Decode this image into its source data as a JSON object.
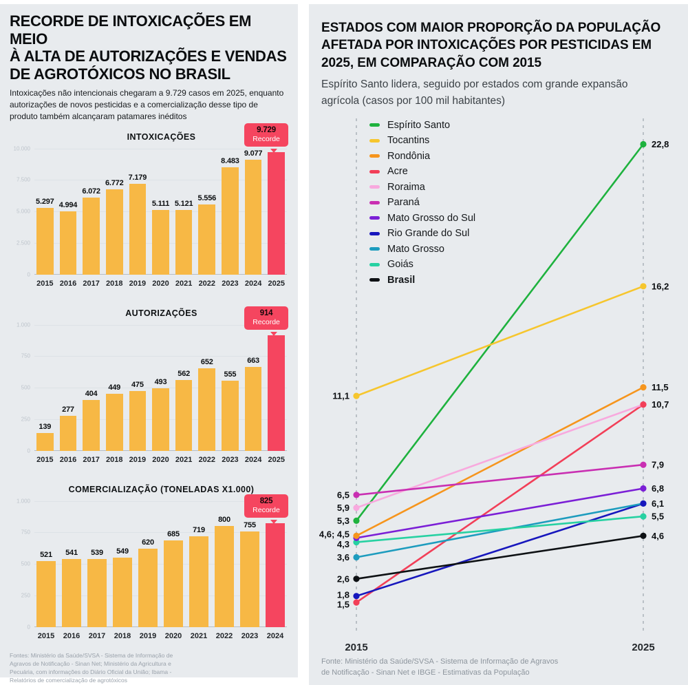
{
  "colors": {
    "panel_bg": "#e8ebee",
    "bar": "#f7b845",
    "record": "#f5455f",
    "grid": "#dde2e6",
    "dashed": "#a0a8b0"
  },
  "left_panel": {
    "title": "RECORDE DE INTOXICAÇÕES EM MEIO\nÀ ALTA DE AUTORIZAÇÕES E VENDAS\nDE AGROTÓXICOS NO BRASIL",
    "subtitle": "Intoxicações não intencionais chegaram a 9.729 casos em 2025, enquanto autorizações de novos pesticidas e a comercialização desse tipo de produto também alcançaram patamares inéditos",
    "source": "Fontes: Ministério da Saúde/SVSA - Sistema de Informação de\nAgravos de Notificação - Sinan Net; Ministério da Agricultura e\nPecuária, com informações do Diário Oficial da União; Ibama -\nRelatórios de comercialização de agrotóxicos"
  },
  "right_panel": {
    "title": "ESTADOS COM MAIOR PROPORÇÃO DA POPULAÇÃO\nAFETADA POR INTOXICAÇÕES POR PESTICIDAS EM\n2025, EM COMPARAÇÃO COM 2015",
    "subtitle": "Espírito Santo lidera, seguido por estados com grande expansão\nagrícola (casos por 100 mil habitantes)",
    "source": "Fonte: Ministério da Saúde/SVSA - Sistema de Informação de Agravos\nde Notificação - Sinan Net e IBGE - Estimativas da População"
  },
  "chart_data": [
    {
      "type": "bar",
      "title": "INTOXICAÇÕES",
      "categories": [
        "2015",
        "2016",
        "2017",
        "2018",
        "2019",
        "2020",
        "2021",
        "2022",
        "2023",
        "2024",
        "2025"
      ],
      "values": [
        5297,
        4994,
        6072,
        6772,
        7179,
        5111,
        5121,
        5556,
        8483,
        9077,
        9729
      ],
      "value_labels": [
        "5.297",
        "4.994",
        "6.072",
        "6.772",
        "7.179",
        "5.111",
        "5.121",
        "5.556",
        "8.483",
        "9.077",
        "9.729"
      ],
      "ylim": [
        0,
        10000
      ],
      "yticks": [
        "10.000",
        "7.500",
        "5.000",
        "2.500",
        "0"
      ],
      "record": {
        "index": 10,
        "value_label": "9.729",
        "badge_label": "Recorde"
      }
    },
    {
      "type": "bar",
      "title": "AUTORIZAÇÕES",
      "categories": [
        "2015",
        "2016",
        "2017",
        "2018",
        "2019",
        "2020",
        "2021",
        "2022",
        "2023",
        "2024",
        "2025"
      ],
      "values": [
        139,
        277,
        404,
        449,
        475,
        493,
        562,
        652,
        555,
        663,
        914
      ],
      "value_labels": [
        "139",
        "277",
        "404",
        "449",
        "475",
        "493",
        "562",
        "652",
        "555",
        "663",
        "914"
      ],
      "ylim": [
        0,
        1000
      ],
      "yticks": [
        "1.000",
        "750",
        "500",
        "250",
        "0"
      ],
      "record": {
        "index": 10,
        "value_label": "914",
        "badge_label": "Recorde"
      }
    },
    {
      "type": "bar",
      "title": "COMERCIALIZAÇÃO (TONELADAS X1.000)",
      "categories": [
        "2015",
        "2016",
        "2017",
        "2018",
        "2019",
        "2020",
        "2021",
        "2022",
        "2023",
        "2024"
      ],
      "values": [
        521,
        541,
        539,
        549,
        620,
        685,
        719,
        800,
        755,
        825
      ],
      "value_labels": [
        "521",
        "541",
        "539",
        "549",
        "620",
        "685",
        "719",
        "800",
        "755",
        "825"
      ],
      "ylim": [
        0,
        1000
      ],
      "yticks": [
        "1.000",
        "750",
        "500",
        "250",
        "0"
      ],
      "record": {
        "index": 9,
        "value_label": "825",
        "badge_label": "Recorde"
      }
    },
    {
      "type": "line",
      "subtype": "slope",
      "x": [
        "2015",
        "2025"
      ],
      "ylim": [
        0,
        24
      ],
      "series": [
        {
          "name": "Espírito Santo",
          "color": "#1eb23e",
          "values": [
            5.3,
            22.8
          ]
        },
        {
          "name": "Tocantins",
          "color": "#f6c62e",
          "values": [
            11.1,
            16.2
          ]
        },
        {
          "name": "Rondônia",
          "color": "#f6951d",
          "values": [
            4.6,
            11.5
          ]
        },
        {
          "name": "Acre",
          "color": "#f23f58",
          "values": [
            1.5,
            10.7
          ]
        },
        {
          "name": "Roraima",
          "color": "#f8a9de",
          "values": [
            5.9,
            10.7
          ]
        },
        {
          "name": "Paraná",
          "color": "#c92fb2",
          "values": [
            6.5,
            7.9
          ]
        },
        {
          "name": "Mato Grosso do Sul",
          "color": "#7b1fd6",
          "values": [
            4.5,
            6.8
          ]
        },
        {
          "name": "Rio Grande do Sul",
          "color": "#1717bd",
          "values": [
            1.8,
            6.1
          ]
        },
        {
          "name": "Mato Grosso",
          "color": "#1d9cbe",
          "values": [
            3.6,
            6.1
          ]
        },
        {
          "name": "Goiás",
          "color": "#27d1a2",
          "values": [
            4.3,
            5.5
          ]
        },
        {
          "name": "Brasil",
          "color": "#0e1114",
          "values": [
            2.6,
            4.6
          ],
          "bold": true
        }
      ],
      "left_labels": [
        {
          "text": "11,1",
          "value": 11.1,
          "dy": 0
        },
        {
          "text": "6,5",
          "value": 6.5,
          "dy": 0
        },
        {
          "text": "5,9",
          "value": 5.9,
          "dy": 0
        },
        {
          "text": "5,3",
          "value": 5.3,
          "dy": 0
        },
        {
          "text": "4,6; 4,5",
          "value": 4.55,
          "dy": -4
        },
        {
          "text": "4,3",
          "value": 4.3,
          "dy": 3
        },
        {
          "text": "3,6",
          "value": 3.6,
          "dy": 0
        },
        {
          "text": "2,6",
          "value": 2.6,
          "dy": 0
        },
        {
          "text": "1,8",
          "value": 1.8,
          "dy": -2
        },
        {
          "text": "1,5",
          "value": 1.5,
          "dy": 3
        }
      ],
      "right_labels": [
        {
          "text": "22,8",
          "value": 22.8,
          "dy": 0
        },
        {
          "text": "16,2",
          "value": 16.2,
          "dy": 0
        },
        {
          "text": "11,5",
          "value": 11.5,
          "dy": 0
        },
        {
          "text": "10,7",
          "value": 10.7,
          "dy": 0
        },
        {
          "text": "7,9",
          "value": 7.9,
          "dy": 0
        },
        {
          "text": "6,8",
          "value": 6.8,
          "dy": 0
        },
        {
          "text": "6,1",
          "value": 6.1,
          "dy": 0
        },
        {
          "text": "5,5",
          "value": 5.5,
          "dy": 0
        },
        {
          "text": "4,6",
          "value": 4.6,
          "dy": 0
        }
      ]
    }
  ]
}
